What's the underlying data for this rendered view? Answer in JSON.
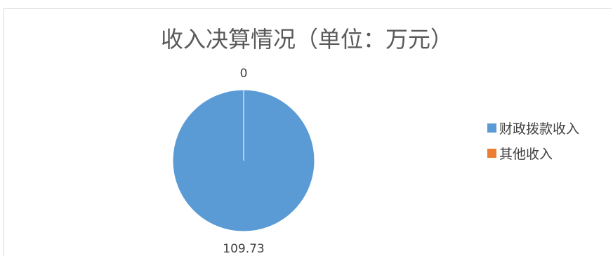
{
  "chart_data": {
    "type": "pie",
    "title": "收入决算情况（单位：万元）",
    "categories": [
      "财政拨款收入",
      "其他收入"
    ],
    "values": [
      109.73,
      0
    ],
    "value_labels": [
      "109.73",
      "0"
    ],
    "colors": [
      "#5b9bd5",
      "#ed7d31"
    ],
    "legend_position": "right"
  }
}
